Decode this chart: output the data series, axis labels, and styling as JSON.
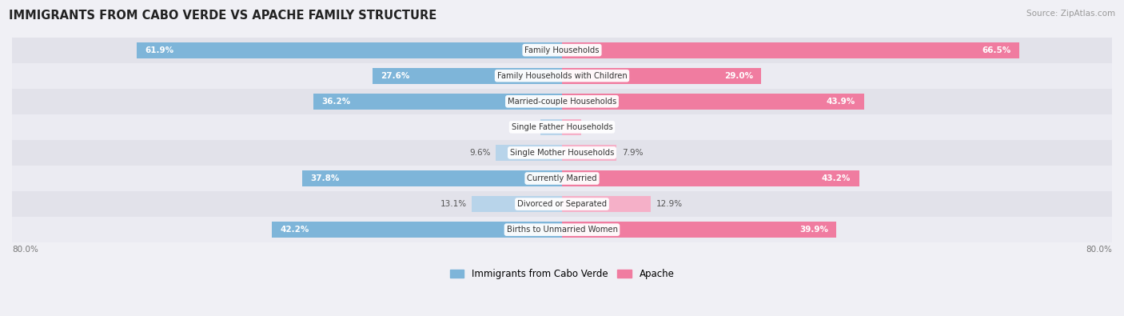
{
  "title": "IMMIGRANTS FROM CABO VERDE VS APACHE FAMILY STRUCTURE",
  "source": "Source: ZipAtlas.com",
  "categories": [
    "Family Households",
    "Family Households with Children",
    "Married-couple Households",
    "Single Father Households",
    "Single Mother Households",
    "Currently Married",
    "Divorced or Separated",
    "Births to Unmarried Women"
  ],
  "cabo_verde": [
    61.9,
    27.6,
    36.2,
    3.1,
    9.6,
    37.8,
    13.1,
    42.2
  ],
  "apache": [
    66.5,
    29.0,
    43.9,
    2.8,
    7.9,
    43.2,
    12.9,
    39.9
  ],
  "max_val": 80.0,
  "cabo_verde_color": "#7eb5d9",
  "apache_color": "#f07ca0",
  "cabo_verde_color_light": "#b8d4ea",
  "apache_color_light": "#f5b0c8",
  "bg_color": "#f0f0f5",
  "row_bg_dark": "#e2e2ea",
  "row_bg_light": "#ebebf2",
  "legend_label_1": "Immigrants from Cabo Verde",
  "legend_label_2": "Apache",
  "x_tick_label_left": "80.0%",
  "x_tick_label_right": "80.0%",
  "large_threshold": 20,
  "label_outside_color": "#555555",
  "label_inside_color": "white"
}
